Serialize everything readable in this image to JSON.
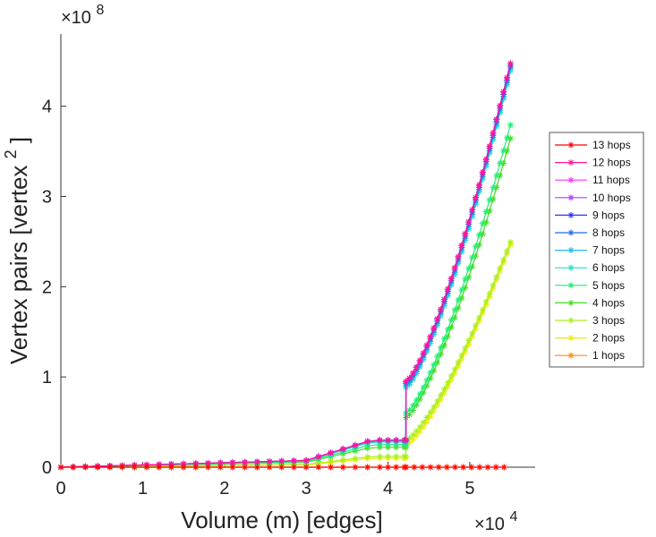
{
  "chart_data": {
    "type": "line",
    "xlabel": "Volume (m) [edges]",
    "ylabel": "Vertex pairs [vertex",
    "ylabel_superscript": "2",
    "ylabel_close": "]",
    "x_exponent_base": "×10",
    "x_exponent_power": "4",
    "y_exponent_base": "×10",
    "y_exponent_power": "8",
    "xlim": [
      0,
      5.8
    ],
    "ylim": [
      0,
      4.8
    ],
    "x_ticks": [
      "0",
      "1",
      "2",
      "3",
      "4",
      "5"
    ],
    "y_ticks": [
      "0",
      "1",
      "2",
      "3",
      "4"
    ],
    "x_units_note": "x values in units of 10^4 edges, y values in units of 10^8 vertex pairs",
    "grid": false,
    "legend_position": "right",
    "jump_x": 4.22,
    "end_x": 5.5,
    "series": [
      {
        "name": "13 hops",
        "color": "#ff0000",
        "plateau": 0.0,
        "start": 0.0,
        "end": 0.0
      },
      {
        "name": "12 hops",
        "color": "#ff1493",
        "plateau": 0.3,
        "start": 0.95,
        "end": 4.48
      },
      {
        "name": "11 hops",
        "color": "#ff33ff",
        "plateau": 0.3,
        "start": 0.95,
        "end": 4.48
      },
      {
        "name": "10 hops",
        "color": "#b040ff",
        "plateau": 0.3,
        "start": 0.95,
        "end": 4.48
      },
      {
        "name": "9 hops",
        "color": "#3030ff",
        "plateau": 0.3,
        "start": 0.95,
        "end": 4.48
      },
      {
        "name": "8 hops",
        "color": "#2266ee",
        "plateau": 0.3,
        "start": 0.93,
        "end": 4.45
      },
      {
        "name": "7 hops",
        "color": "#22bbee",
        "plateau": 0.29,
        "start": 0.9,
        "end": 4.43
      },
      {
        "name": "6 hops",
        "color": "#22ddcc",
        "plateau": 0.28,
        "start": 0.88,
        "end": 4.4
      },
      {
        "name": "5 hops",
        "color": "#22ee77",
        "plateau": 0.25,
        "start": 0.6,
        "end": 3.8
      },
      {
        "name": "4 hops",
        "color": "#44dd22",
        "plateau": 0.22,
        "start": 0.55,
        "end": 3.65
      },
      {
        "name": "3 hops",
        "color": "#aaee22",
        "plateau": 0.12,
        "start": 0.3,
        "end": 2.5
      },
      {
        "name": "2 hops",
        "color": "#eeee00",
        "plateau": 0.1,
        "start": 0.25,
        "end": 2.47
      },
      {
        "name": "1 hops",
        "color": "#ff8c1a",
        "plateau": 0.0,
        "start": 0.0,
        "end": 0.0
      }
    ]
  }
}
